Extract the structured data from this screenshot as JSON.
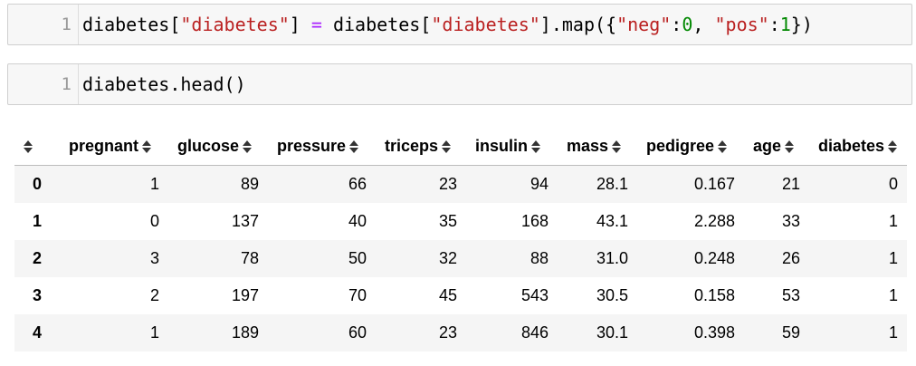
{
  "cells": [
    {
      "line_number": "1",
      "code_tokens": [
        {
          "t": "diabetes[",
          "c": "plain"
        },
        {
          "t": "\"diabetes\"",
          "c": "str"
        },
        {
          "t": "] ",
          "c": "plain"
        },
        {
          "t": "=",
          "c": "op"
        },
        {
          "t": " diabetes[",
          "c": "plain"
        },
        {
          "t": "\"diabetes\"",
          "c": "str"
        },
        {
          "t": "].map({",
          "c": "plain"
        },
        {
          "t": "\"neg\"",
          "c": "str"
        },
        {
          "t": ":",
          "c": "plain"
        },
        {
          "t": "0",
          "c": "num"
        },
        {
          "t": ", ",
          "c": "plain"
        },
        {
          "t": "\"pos\"",
          "c": "str"
        },
        {
          "t": ":",
          "c": "plain"
        },
        {
          "t": "1",
          "c": "num"
        },
        {
          "t": "})",
          "c": "plain"
        }
      ]
    },
    {
      "line_number": "1",
      "code_tokens": [
        {
          "t": "diabetes.head()",
          "c": "plain"
        }
      ]
    }
  ],
  "dataframe": {
    "columns": [
      "pregnant",
      "glucose",
      "pressure",
      "triceps",
      "insulin",
      "mass",
      "pedigree",
      "age",
      "diabetes"
    ],
    "rows": [
      {
        "index": "0",
        "values": [
          "1",
          "89",
          "66",
          "23",
          "94",
          "28.1",
          "0.167",
          "21",
          "0"
        ]
      },
      {
        "index": "1",
        "values": [
          "0",
          "137",
          "40",
          "35",
          "168",
          "43.1",
          "2.288",
          "33",
          "1"
        ]
      },
      {
        "index": "2",
        "values": [
          "3",
          "78",
          "50",
          "32",
          "88",
          "31.0",
          "0.248",
          "26",
          "1"
        ]
      },
      {
        "index": "3",
        "values": [
          "2",
          "197",
          "70",
          "45",
          "543",
          "30.5",
          "0.158",
          "53",
          "1"
        ]
      },
      {
        "index": "4",
        "values": [
          "1",
          "189",
          "60",
          "23",
          "846",
          "30.1",
          "0.398",
          "59",
          "1"
        ]
      }
    ]
  }
}
